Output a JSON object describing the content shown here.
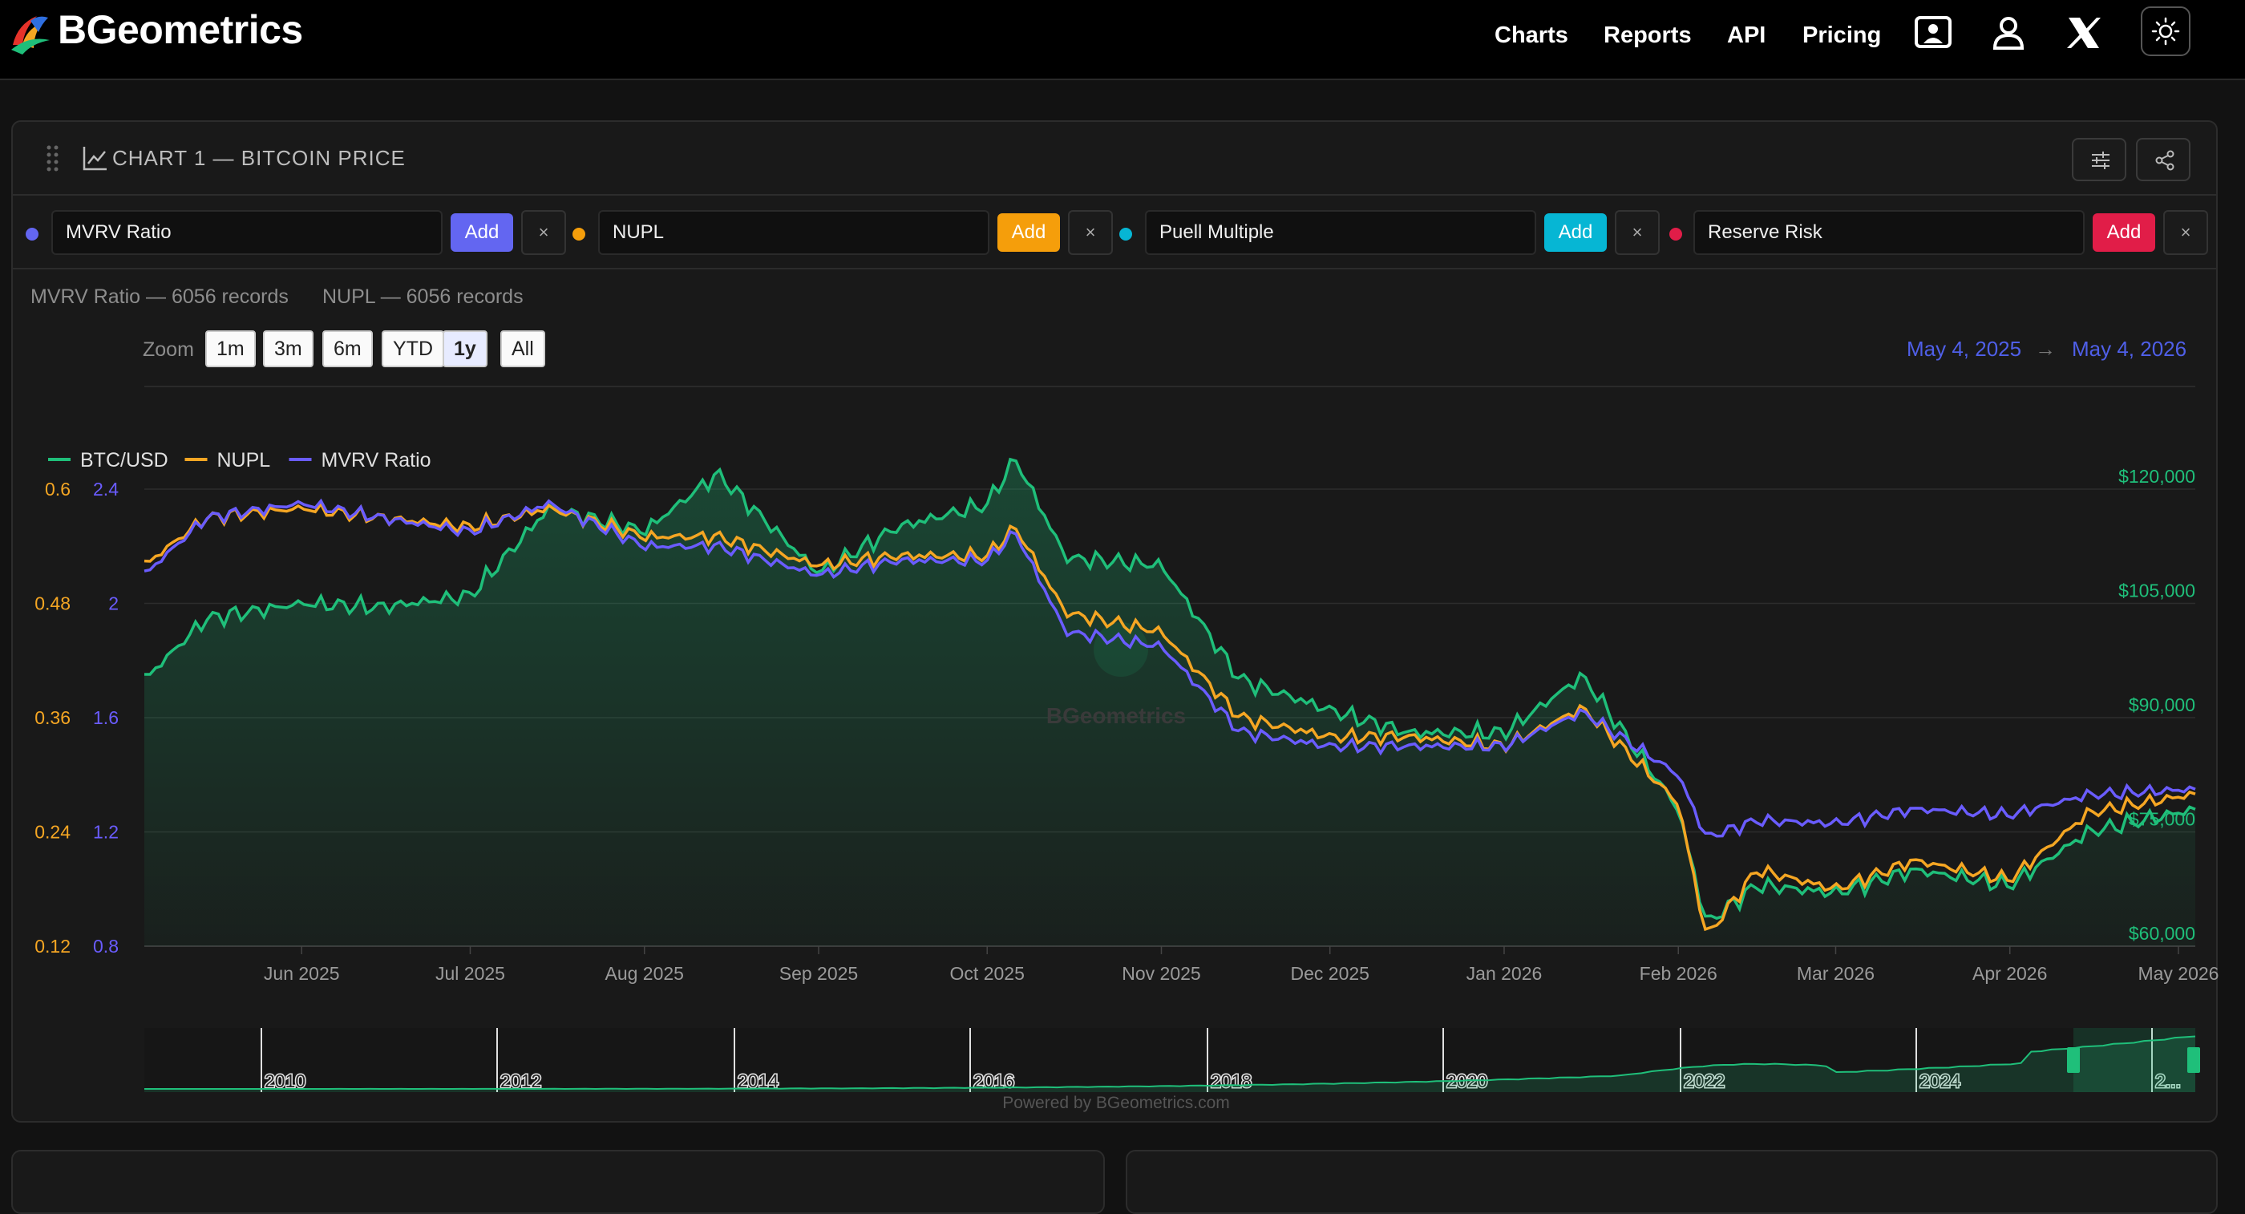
{
  "brand": {
    "name": "BGeometrics"
  },
  "nav": {
    "charts": "Charts",
    "reports": "Reports",
    "api": "API",
    "pricing": "Pricing"
  },
  "card": {
    "title": "CHART 1 — BITCOIN PRICE"
  },
  "series_inputs": [
    {
      "value": "MVRV Ratio",
      "add": "Add",
      "remove": "×",
      "color": "#6366f1"
    },
    {
      "value": "NUPL",
      "add": "Add",
      "remove": "×",
      "color": "#f59e0b"
    },
    {
      "value": "Puell Multiple",
      "add": "Add",
      "remove": "×",
      "color": "#06b6d4"
    },
    {
      "value": "Reserve Risk",
      "add": "Add",
      "remove": "×",
      "color": "#e11d48"
    }
  ],
  "records": {
    "mvrv": "MVRV Ratio — 6056 records",
    "nupl": "NUPL — 6056 records"
  },
  "zoom": {
    "label": "Zoom",
    "buttons": [
      "1m",
      "3m",
      "6m",
      "YTD",
      "1y",
      "All"
    ],
    "selected": "1y"
  },
  "date_range": {
    "from": "May 4, 2025",
    "arrow": "→",
    "to": "May 4, 2026"
  },
  "watermark": "BGeometrics",
  "powered_by": "Powered by BGeometrics.com",
  "chart_data": {
    "type": "line",
    "legend": [
      {
        "name": "BTC/USD",
        "color": "#1fbf7a"
      },
      {
        "name": "NUPL",
        "color": "#f5a623"
      },
      {
        "name": "MVRV Ratio",
        "color": "#6a5cff"
      }
    ],
    "x_ticks": [
      "Jun 2025",
      "Jul 2025",
      "Aug 2025",
      "Sep 2025",
      "Oct 2025",
      "Nov 2025",
      "Dec 2025",
      "Jan 2026",
      "Feb 2026",
      "Mar 2026",
      "Apr 2026",
      "May 2026"
    ],
    "btc_axis": {
      "ticks": [
        "$60,000",
        "$75,000",
        "$90,000",
        "$105,000",
        "$120,000"
      ],
      "range": [
        60000,
        120000
      ]
    },
    "nupl_axis": {
      "ticks": [
        "0.12",
        "0.24",
        "0.36",
        "0.48",
        "0.6"
      ],
      "range": [
        0.12,
        0.6
      ]
    },
    "mvrv_axis": {
      "ticks": [
        "0.8",
        "1.2",
        "1.6",
        "2",
        "2.4"
      ],
      "range": [
        0.8,
        2.4
      ]
    },
    "series": [
      {
        "name": "BTC/USD",
        "dates": [
          "2025-05-04",
          "2025-05-15",
          "2025-06-01",
          "2025-06-15",
          "2025-07-01",
          "2025-07-15",
          "2025-08-01",
          "2025-08-14",
          "2025-09-01",
          "2025-09-15",
          "2025-10-01",
          "2025-10-06",
          "2025-10-15",
          "2025-11-01",
          "2025-11-15",
          "2025-12-01",
          "2025-12-15",
          "2026-01-01",
          "2026-01-15",
          "2026-02-01",
          "2026-02-06",
          "2026-02-15",
          "2026-03-01",
          "2026-03-15",
          "2026-04-01",
          "2026-04-15",
          "2026-05-04"
        ],
        "values": [
          95000,
          103000,
          105000,
          104500,
          106000,
          117500,
          114500,
          122000,
          109000,
          115000,
          118000,
          124000,
          111000,
          110000,
          95000,
          91000,
          88000,
          88000,
          95500,
          78000,
          63000,
          68000,
          67000,
          70000,
          68000,
          75000,
          78000
        ]
      },
      {
        "name": "NUPL",
        "values": [
          0.52,
          0.57,
          0.58,
          0.57,
          0.56,
          0.58,
          0.55,
          0.55,
          0.52,
          0.53,
          0.53,
          0.56,
          0.47,
          0.45,
          0.36,
          0.34,
          0.34,
          0.33,
          0.37,
          0.27,
          0.13,
          0.2,
          0.18,
          0.21,
          0.19,
          0.26,
          0.28
        ]
      },
      {
        "name": "MVRV Ratio",
        "values": [
          2.1,
          2.3,
          2.35,
          2.3,
          2.25,
          2.35,
          2.2,
          2.2,
          2.1,
          2.15,
          2.15,
          2.25,
          1.9,
          1.85,
          1.55,
          1.5,
          1.5,
          1.5,
          1.62,
          1.4,
          1.18,
          1.24,
          1.23,
          1.28,
          1.26,
          1.33,
          1.35
        ]
      }
    ],
    "navigator_ticks": [
      "2010",
      "2012",
      "2014",
      "2016",
      "2018",
      "2020",
      "2022",
      "2024",
      "2..."
    ]
  }
}
